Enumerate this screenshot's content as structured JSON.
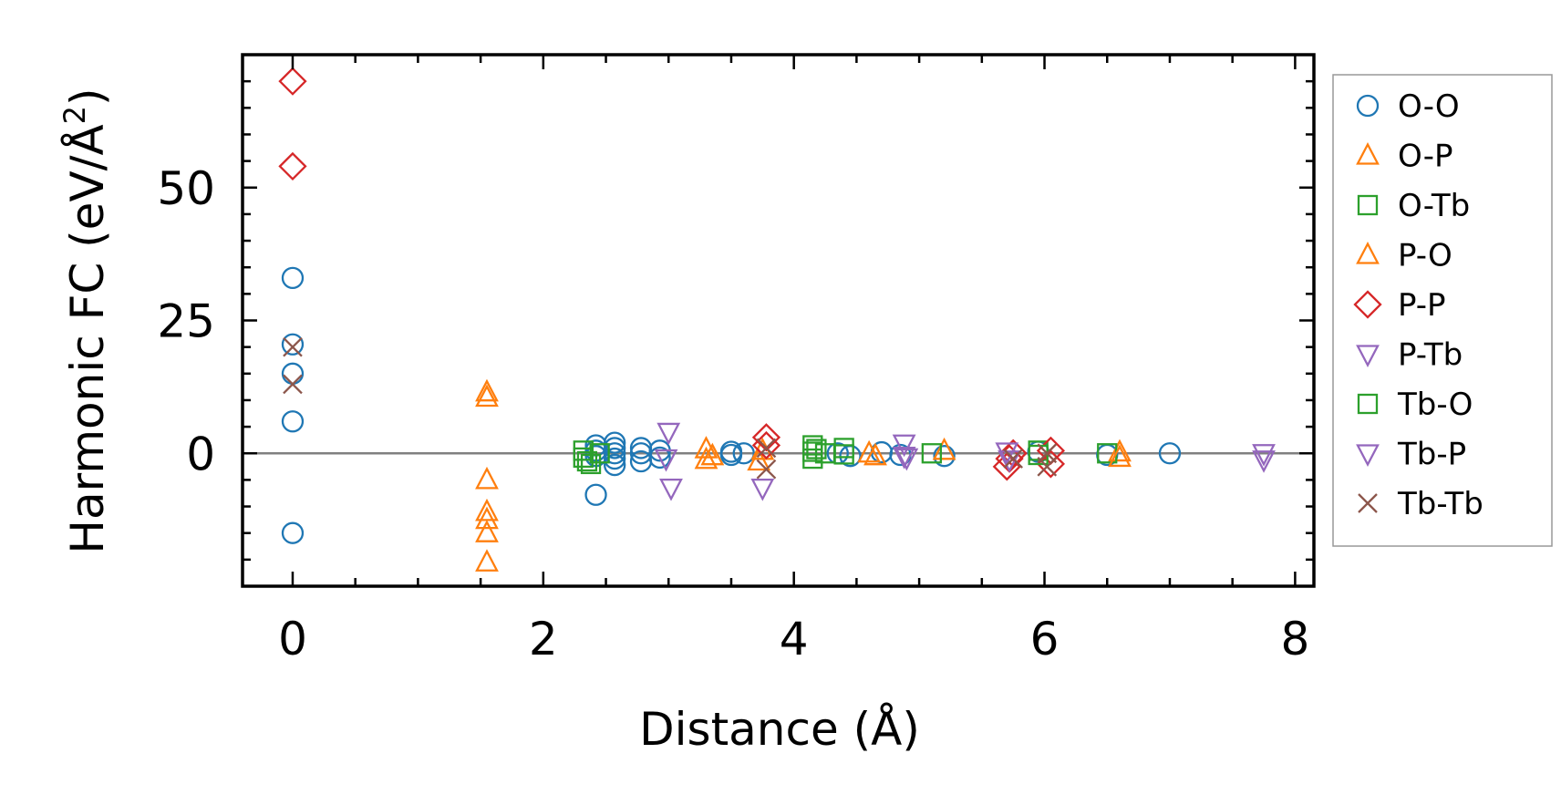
{
  "chart_data": {
    "type": "scatter",
    "xlabel": "Distance (Å)",
    "ylabel_main": "Harmonic FC (eV/Å",
    "ylabel_sup": "2",
    "ylabel_close": ")",
    "xlim": [
      -0.4,
      8.15
    ],
    "ylim": [
      -25,
      75
    ],
    "xticks": [
      0,
      2,
      4,
      6,
      8
    ],
    "xtick_labels": [
      "0",
      "2",
      "4",
      "6",
      "8"
    ],
    "yticks": [
      0,
      25,
      50
    ],
    "ytick_labels": [
      "0",
      "25",
      "50"
    ],
    "zero_line": true,
    "legend_position": "right",
    "series": [
      {
        "name": "O-O",
        "marker": "circle",
        "color": "#1f77b4",
        "points": [
          [
            0,
            33
          ],
          [
            0,
            20.5
          ],
          [
            0,
            15
          ],
          [
            0,
            6
          ],
          [
            0,
            -15
          ],
          [
            2.42,
            -7.8
          ],
          [
            2.42,
            1.5
          ],
          [
            2.42,
            0.5
          ],
          [
            2.42,
            -0.5
          ],
          [
            2.57,
            2
          ],
          [
            2.57,
            1
          ],
          [
            2.57,
            0
          ],
          [
            2.57,
            -1
          ],
          [
            2.57,
            -2.2
          ],
          [
            2.78,
            1
          ],
          [
            2.78,
            0
          ],
          [
            2.78,
            -1.5
          ],
          [
            2.93,
            0.5
          ],
          [
            2.93,
            -0.8
          ],
          [
            3.5,
            0.3
          ],
          [
            3.5,
            -0.3
          ],
          [
            3.6,
            0
          ],
          [
            4.35,
            0
          ],
          [
            4.45,
            -0.5
          ],
          [
            4.7,
            0.2
          ],
          [
            4.85,
            -0.3
          ],
          [
            5.2,
            -0.5
          ],
          [
            5.95,
            0.3
          ],
          [
            6.5,
            -0.3
          ],
          [
            7.0,
            0
          ]
        ]
      },
      {
        "name": "O-P",
        "marker": "triangle-up",
        "color": "#ff7f0e",
        "points": [
          [
            1.55,
            11.5
          ],
          [
            1.55,
            -5
          ],
          [
            1.55,
            -11
          ],
          [
            1.55,
            -12.5
          ],
          [
            1.55,
            -15
          ],
          [
            1.55,
            -20.5
          ],
          [
            3.3,
            0.8
          ],
          [
            3.35,
            -0.5
          ],
          [
            3.72,
            -1.5
          ],
          [
            4.6,
            0
          ],
          [
            5.2,
            0.5
          ],
          [
            6.6,
            0.2
          ]
        ]
      },
      {
        "name": "O-Tb",
        "marker": "square",
        "color": "#2ca02c",
        "points": [
          [
            2.32,
            0.5
          ],
          [
            2.32,
            -0.8
          ],
          [
            2.38,
            -2
          ],
          [
            2.45,
            0
          ],
          [
            4.15,
            1.5
          ],
          [
            4.15,
            0.3
          ],
          [
            4.15,
            -1
          ],
          [
            4.25,
            0
          ],
          [
            4.4,
            1
          ],
          [
            4.4,
            -0.2
          ],
          [
            5.1,
            0
          ],
          [
            5.95,
            0.5
          ],
          [
            6.5,
            0
          ]
        ]
      },
      {
        "name": "P-O",
        "marker": "triangle-up",
        "color": "#ff7f0e",
        "points": [
          [
            1.55,
            10.5
          ],
          [
            3.3,
            -1.2
          ],
          [
            3.75,
            0.5
          ],
          [
            4.65,
            -0.5
          ],
          [
            6.6,
            -0.8
          ]
        ]
      },
      {
        "name": "P-P",
        "marker": "diamond",
        "color": "#d62728",
        "points": [
          [
            0,
            70
          ],
          [
            0,
            54
          ],
          [
            3.78,
            3
          ],
          [
            3.78,
            1.5
          ],
          [
            5.7,
            -2.5
          ],
          [
            5.72,
            -1
          ],
          [
            5.75,
            0
          ],
          [
            6.05,
            -2
          ],
          [
            6.05,
            0.5
          ]
        ]
      },
      {
        "name": "P-Tb",
        "marker": "triangle-down",
        "color": "#9467bd",
        "points": [
          [
            3.0,
            4
          ],
          [
            3.02,
            -6.5
          ],
          [
            3.75,
            -6.5
          ],
          [
            4.88,
            1.8
          ],
          [
            4.88,
            -0.5
          ],
          [
            5.7,
            0.3
          ],
          [
            7.75,
            0
          ]
        ]
      },
      {
        "name": "Tb-O",
        "marker": "square",
        "color": "#2ca02c",
        "points": [
          [
            2.35,
            -1.5
          ],
          [
            4.18,
            0.8
          ],
          [
            5.95,
            -0.3
          ]
        ]
      },
      {
        "name": "Tb-P",
        "marker": "triangle-down",
        "color": "#9467bd",
        "points": [
          [
            2.98,
            -1
          ],
          [
            4.9,
            -0.8
          ],
          [
            5.72,
            -1.2
          ],
          [
            7.75,
            -1.2
          ]
        ]
      },
      {
        "name": "Tb-Tb",
        "marker": "x",
        "color": "#8c564b",
        "points": [
          [
            0,
            20
          ],
          [
            0,
            13
          ],
          [
            3.78,
            1
          ],
          [
            3.78,
            -3
          ],
          [
            5.75,
            -1
          ],
          [
            6.02,
            -2.5
          ],
          [
            6.02,
            0
          ]
        ]
      }
    ]
  }
}
